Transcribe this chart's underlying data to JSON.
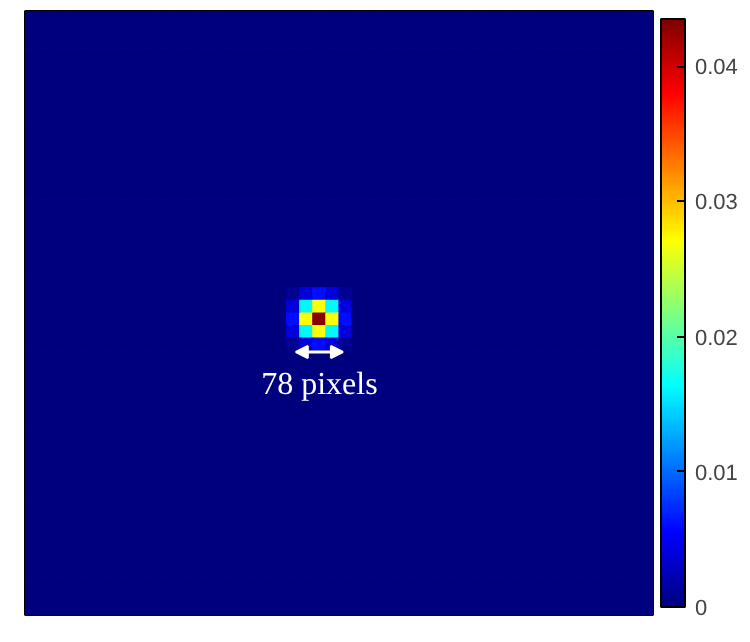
{
  "chart_data": {
    "type": "heatmap",
    "categories": [
      null,
      null,
      null,
      null,
      null,
      null,
      null,
      null,
      null,
      null,
      null,
      null,
      null,
      null,
      null,
      null,
      null,
      null,
      null,
      null,
      null,
      null,
      null,
      null,
      null,
      null,
      null,
      null,
      null,
      null,
      null,
      null,
      null,
      null,
      null,
      null,
      null,
      null,
      null,
      null,
      null,
      null,
      null,
      null,
      null,
      null,
      null,
      null
    ],
    "y_categories": [
      null,
      null,
      null,
      null,
      null,
      null,
      null,
      null,
      null,
      null,
      null,
      null,
      null,
      null,
      null,
      null,
      null,
      null,
      null,
      null,
      null,
      null,
      null,
      null,
      null,
      null,
      null,
      null,
      null,
      null,
      null,
      null,
      null,
      null,
      null,
      null,
      null,
      null,
      null,
      null,
      null,
      null,
      null,
      null,
      null,
      null,
      null,
      null
    ],
    "cells": [
      [
        0,
        0,
        0,
        0,
        0,
        0,
        0,
        0,
        0,
        0,
        0,
        0,
        0,
        0,
        0,
        0,
        0,
        0,
        0,
        0,
        0,
        0,
        0,
        0,
        0,
        0,
        0,
        0,
        0,
        0,
        0,
        0,
        0,
        0,
        0,
        0,
        0,
        0,
        0,
        0,
        0,
        0,
        0,
        0,
        0,
        0,
        0,
        0
      ],
      [
        0,
        0,
        0,
        0,
        0,
        0,
        0,
        0,
        0,
        0,
        0,
        0,
        0,
        0,
        0,
        0,
        0,
        0,
        0,
        0,
        0,
        0,
        0,
        0,
        0,
        0,
        0,
        0,
        0,
        0,
        0,
        0,
        0,
        0,
        0,
        0,
        0,
        0,
        0,
        0,
        0,
        0,
        0,
        0,
        0,
        0,
        0,
        0
      ],
      [
        0,
        0,
        0,
        0,
        0,
        0,
        0,
        0,
        0,
        0,
        0,
        0,
        0,
        0,
        0,
        0,
        0,
        0,
        0,
        0,
        0,
        0,
        0,
        0,
        0,
        0,
        0,
        0,
        0,
        0,
        0,
        0,
        0,
        0,
        0,
        0,
        0,
        0,
        0,
        0,
        0,
        0,
        0,
        0,
        0,
        0,
        0,
        0
      ],
      [
        0,
        0,
        0,
        0,
        0,
        0,
        0,
        0,
        0,
        0,
        0,
        0,
        0,
        0,
        0,
        0,
        0,
        0,
        0,
        0,
        0,
        0,
        0,
        0,
        0,
        0,
        0,
        0,
        0,
        0,
        0,
        0,
        0,
        0,
        0,
        0,
        0,
        0,
        0,
        0,
        0,
        0,
        0,
        0,
        0,
        0,
        0,
        0
      ],
      [
        0,
        0,
        0,
        0,
        0,
        0,
        0,
        0,
        0,
        0,
        0,
        0,
        0,
        0,
        0,
        0,
        0,
        0,
        0,
        0,
        0,
        0,
        0,
        0,
        0,
        0,
        0,
        0,
        0,
        0,
        0,
        0,
        0,
        0,
        0,
        0,
        0,
        0,
        0,
        0,
        0,
        0,
        0,
        0,
        0,
        0,
        0,
        0
      ],
      [
        0,
        0,
        0,
        0,
        0,
        0,
        0,
        0,
        0,
        0,
        0,
        0,
        0,
        0,
        0,
        0,
        0,
        0,
        0,
        0,
        0,
        0,
        0,
        0,
        0,
        0,
        0,
        0,
        0,
        0,
        0,
        0,
        0,
        0,
        0,
        0,
        0,
        0,
        0,
        0,
        0,
        0,
        0,
        0,
        0,
        0,
        0,
        0
      ],
      [
        0,
        0,
        0,
        0,
        0,
        0,
        0,
        0,
        0,
        0,
        0,
        0,
        0,
        0,
        0,
        0,
        0,
        0,
        0,
        0,
        0,
        0,
        0,
        0,
        0,
        0,
        0,
        0,
        0,
        0,
        0,
        0,
        0,
        0,
        0,
        0,
        0,
        0,
        0,
        0,
        0,
        0,
        0,
        0,
        0,
        0,
        0,
        0
      ],
      [
        0,
        0,
        0,
        0,
        0,
        0,
        0,
        0,
        0,
        0,
        0,
        0,
        0,
        0,
        0,
        0,
        0,
        0,
        0,
        0,
        0,
        0,
        0,
        0,
        0,
        0,
        0,
        0,
        0,
        0,
        0,
        0,
        0,
        0,
        0,
        0,
        0,
        0,
        0,
        0,
        0,
        0,
        0,
        0,
        0,
        0,
        0,
        0
      ],
      [
        0,
        0,
        0,
        0,
        0,
        0,
        0,
        0,
        0,
        0,
        0,
        0,
        0,
        0,
        0,
        0,
        0,
        0,
        0,
        0,
        0,
        0,
        0,
        0,
        0,
        0,
        0,
        0,
        0,
        0,
        0,
        0,
        0,
        0,
        0,
        0,
        0,
        0,
        0,
        0,
        0,
        0,
        0,
        0,
        0,
        0,
        0,
        0
      ],
      [
        0,
        0,
        0,
        0,
        0,
        0,
        0,
        0,
        0,
        0,
        0,
        0,
        0,
        0,
        0,
        0,
        0,
        0,
        0,
        0,
        0,
        0,
        0,
        0,
        0,
        0,
        0,
        0,
        0,
        0,
        0,
        0,
        0,
        0,
        0,
        0,
        0,
        0,
        0,
        0,
        0,
        0,
        0,
        0,
        0,
        0,
        0,
        0
      ],
      [
        0,
        0,
        0,
        0,
        0,
        0,
        0,
        0,
        0,
        0,
        0,
        0,
        0,
        0,
        0,
        0,
        0,
        0,
        0,
        0,
        0,
        0,
        0,
        0,
        0,
        0,
        0,
        0,
        0,
        0,
        0,
        0,
        0,
        0,
        0,
        0,
        0,
        0,
        0,
        0,
        0,
        0,
        0,
        0,
        0,
        0,
        0,
        0
      ],
      [
        0,
        0,
        0,
        0,
        0,
        0,
        0,
        0,
        0,
        0,
        0,
        0,
        0,
        0,
        0,
        0,
        0,
        0,
        0,
        0,
        0,
        0,
        0,
        0,
        0,
        0,
        0,
        0,
        0,
        0,
        0,
        0,
        0,
        0,
        0,
        0,
        0,
        0,
        0,
        0,
        0,
        0,
        0,
        0,
        0,
        0,
        0,
        0
      ],
      [
        0,
        0,
        0,
        0,
        0,
        0,
        0,
        0,
        0,
        0,
        0,
        0,
        0,
        0,
        0,
        0,
        0,
        0,
        0,
        0,
        0,
        0,
        0,
        0,
        0,
        0,
        0,
        0,
        0,
        0,
        0,
        0,
        0,
        0,
        0,
        0,
        0,
        0,
        0,
        0,
        0,
        0,
        0,
        0,
        0,
        0,
        0,
        0
      ],
      [
        0,
        0,
        0,
        0,
        0,
        0,
        0,
        0,
        0,
        0,
        0,
        0,
        0,
        0,
        0,
        0,
        0,
        0,
        0,
        0,
        0,
        0,
        0,
        0,
        0,
        0,
        0,
        0,
        0,
        0,
        0,
        0,
        0,
        0,
        0,
        0,
        0,
        0,
        0,
        0,
        0,
        0,
        0,
        0,
        0,
        0,
        0,
        0
      ],
      [
        0,
        0,
        0,
        0,
        0,
        0,
        0,
        0,
        0,
        0,
        0,
        0,
        0,
        0,
        0,
        0,
        0,
        0,
        0,
        0,
        0,
        0,
        0,
        0,
        0,
        0,
        0,
        0,
        0,
        0,
        0,
        0,
        0,
        0,
        0,
        0,
        0,
        0,
        0,
        0,
        0,
        0,
        0,
        0,
        0,
        0,
        0,
        0
      ],
      [
        0,
        0,
        0,
        0,
        0,
        0,
        0,
        0,
        0,
        0,
        0,
        0,
        0,
        0,
        0,
        0,
        0,
        0,
        0,
        0,
        0,
        0,
        0,
        0,
        0,
        0,
        0,
        0,
        0,
        0,
        0,
        0,
        0,
        0,
        0,
        0,
        0,
        0,
        0,
        0,
        0,
        0,
        0,
        0,
        0,
        0,
        0,
        0
      ],
      [
        0,
        0,
        0,
        0,
        0,
        0,
        0,
        0,
        0,
        0,
        0,
        0,
        0,
        0,
        0,
        0,
        0,
        0,
        0,
        0,
        0,
        0,
        0,
        0,
        0,
        0,
        0,
        0,
        0,
        0,
        0,
        0,
        0,
        0,
        0,
        0,
        0,
        0,
        0,
        0,
        0,
        0,
        0,
        0,
        0,
        0,
        0,
        0
      ],
      [
        0,
        0,
        0,
        0,
        0,
        0,
        0,
        0,
        0,
        0,
        0,
        0,
        0,
        0,
        0,
        0,
        0,
        0,
        0,
        0,
        0,
        0,
        0,
        0,
        0,
        0,
        0,
        0,
        0,
        0,
        0,
        0,
        0,
        0,
        0,
        0,
        0,
        0,
        0,
        0,
        0,
        0,
        0,
        0,
        0,
        0,
        0,
        0
      ],
      [
        0,
        0,
        0,
        0,
        0,
        0,
        0,
        0,
        0,
        0,
        0,
        0,
        0,
        0,
        0,
        0,
        0,
        0,
        0,
        0,
        0,
        0,
        0,
        0,
        0,
        0,
        0,
        0,
        0,
        0,
        0,
        0,
        0,
        0,
        0,
        0,
        0,
        0,
        0,
        0,
        0,
        0,
        0,
        0,
        0,
        0,
        0,
        0
      ],
      [
        0,
        0,
        0,
        0,
        0,
        0,
        0,
        0,
        0,
        0,
        0,
        0,
        0,
        0,
        0,
        0,
        0,
        0,
        0,
        0,
        0,
        0,
        0,
        0,
        0,
        0,
        0,
        0,
        0,
        0,
        0,
        0,
        0,
        0,
        0,
        0,
        0,
        0,
        0,
        0,
        0,
        0,
        0,
        0,
        0,
        0,
        0,
        0
      ],
      [
        0,
        0,
        0,
        0,
        0,
        0,
        0,
        0,
        0,
        0,
        0,
        0,
        0,
        0,
        0,
        0,
        0,
        0,
        0,
        0,
        0,
        0,
        0,
        0,
        0,
        0,
        0,
        0,
        0,
        0,
        0,
        0,
        0,
        0,
        0,
        0,
        0,
        0,
        0,
        0,
        0,
        0,
        0,
        0,
        0,
        0,
        0,
        0
      ],
      [
        0,
        0,
        0,
        0,
        0,
        0,
        0,
        0,
        0,
        0,
        0,
        0,
        0,
        0,
        0,
        0,
        0,
        0,
        0,
        0,
        0,
        0,
        0,
        0,
        0,
        0,
        0,
        0,
        0,
        0,
        0,
        0,
        0,
        0,
        0,
        0,
        0,
        0,
        0,
        0,
        0,
        0,
        0,
        0,
        0,
        0,
        0,
        0
      ],
      [
        0,
        0,
        0,
        0,
        0,
        0,
        0,
        0,
        0,
        0,
        0,
        0,
        0,
        0,
        0,
        0,
        0,
        0,
        0,
        0,
        0.001,
        0.004,
        0.006,
        0.004,
        0.001,
        0,
        0,
        0,
        0,
        0,
        0,
        0,
        0,
        0,
        0,
        0,
        0,
        0,
        0,
        0,
        0,
        0,
        0,
        0,
        0,
        0,
        0,
        0
      ],
      [
        0,
        0,
        0,
        0,
        0,
        0,
        0,
        0,
        0,
        0,
        0,
        0,
        0,
        0,
        0,
        0,
        0,
        0,
        0,
        0,
        0.004,
        0.016,
        0.027,
        0.016,
        0.004,
        0,
        0,
        0,
        0,
        0,
        0,
        0,
        0,
        0,
        0,
        0,
        0,
        0,
        0,
        0,
        0,
        0,
        0,
        0,
        0,
        0,
        0,
        0
      ],
      [
        0,
        0,
        0,
        0,
        0,
        0,
        0,
        0,
        0,
        0,
        0,
        0,
        0,
        0,
        0,
        0,
        0,
        0,
        0,
        0,
        0.006,
        0.027,
        0.043,
        0.027,
        0.006,
        0,
        0,
        0,
        0,
        0,
        0,
        0,
        0,
        0,
        0,
        0,
        0,
        0,
        0,
        0,
        0,
        0,
        0,
        0,
        0,
        0,
        0,
        0
      ],
      [
        0,
        0,
        0,
        0,
        0,
        0,
        0,
        0,
        0,
        0,
        0,
        0,
        0,
        0,
        0,
        0,
        0,
        0,
        0,
        0,
        0.004,
        0.016,
        0.027,
        0.016,
        0.004,
        0,
        0,
        0,
        0,
        0,
        0,
        0,
        0,
        0,
        0,
        0,
        0,
        0,
        0,
        0,
        0,
        0,
        0,
        0,
        0,
        0,
        0,
        0
      ],
      [
        0,
        0,
        0,
        0,
        0,
        0,
        0,
        0,
        0,
        0,
        0,
        0,
        0,
        0,
        0,
        0,
        0,
        0,
        0,
        0,
        0.001,
        0.004,
        0.006,
        0.004,
        0.001,
        0,
        0,
        0,
        0,
        0,
        0,
        0,
        0,
        0,
        0,
        0,
        0,
        0,
        0,
        0,
        0,
        0,
        0,
        0,
        0,
        0,
        0,
        0
      ],
      [
        0,
        0,
        0,
        0,
        0,
        0,
        0,
        0,
        0,
        0,
        0,
        0,
        0,
        0,
        0,
        0,
        0,
        0,
        0,
        0,
        0,
        0,
        0,
        0,
        0,
        0,
        0,
        0,
        0,
        0,
        0,
        0,
        0,
        0,
        0,
        0,
        0,
        0,
        0,
        0,
        0,
        0,
        0,
        0,
        0,
        0,
        0,
        0
      ],
      [
        0,
        0,
        0,
        0,
        0,
        0,
        0,
        0,
        0,
        0,
        0,
        0,
        0,
        0,
        0,
        0,
        0,
        0,
        0,
        0,
        0,
        0,
        0,
        0,
        0,
        0,
        0,
        0,
        0,
        0,
        0,
        0,
        0,
        0,
        0,
        0,
        0,
        0,
        0,
        0,
        0,
        0,
        0,
        0,
        0,
        0,
        0,
        0
      ],
      [
        0,
        0,
        0,
        0,
        0,
        0,
        0,
        0,
        0,
        0,
        0,
        0,
        0,
        0,
        0,
        0,
        0,
        0,
        0,
        0,
        0,
        0,
        0,
        0,
        0,
        0,
        0,
        0,
        0,
        0,
        0,
        0,
        0,
        0,
        0,
        0,
        0,
        0,
        0,
        0,
        0,
        0,
        0,
        0,
        0,
        0,
        0,
        0
      ],
      [
        0,
        0,
        0,
        0,
        0,
        0,
        0,
        0,
        0,
        0,
        0,
        0,
        0,
        0,
        0,
        0,
        0,
        0,
        0,
        0,
        0,
        0,
        0,
        0,
        0,
        0,
        0,
        0,
        0,
        0,
        0,
        0,
        0,
        0,
        0,
        0,
        0,
        0,
        0,
        0,
        0,
        0,
        0,
        0,
        0,
        0,
        0,
        0
      ],
      [
        0,
        0,
        0,
        0,
        0,
        0,
        0,
        0,
        0,
        0,
        0,
        0,
        0,
        0,
        0,
        0,
        0,
        0,
        0,
        0,
        0,
        0,
        0,
        0,
        0,
        0,
        0,
        0,
        0,
        0,
        0,
        0,
        0,
        0,
        0,
        0,
        0,
        0,
        0,
        0,
        0,
        0,
        0,
        0,
        0,
        0,
        0,
        0
      ],
      [
        0,
        0,
        0,
        0,
        0,
        0,
        0,
        0,
        0,
        0,
        0,
        0,
        0,
        0,
        0,
        0,
        0,
        0,
        0,
        0,
        0,
        0,
        0,
        0,
        0,
        0,
        0,
        0,
        0,
        0,
        0,
        0,
        0,
        0,
        0,
        0,
        0,
        0,
        0,
        0,
        0,
        0,
        0,
        0,
        0,
        0,
        0,
        0
      ],
      [
        0,
        0,
        0,
        0,
        0,
        0,
        0,
        0,
        0,
        0,
        0,
        0,
        0,
        0,
        0,
        0,
        0,
        0,
        0,
        0,
        0,
        0,
        0,
        0,
        0,
        0,
        0,
        0,
        0,
        0,
        0,
        0,
        0,
        0,
        0,
        0,
        0,
        0,
        0,
        0,
        0,
        0,
        0,
        0,
        0,
        0,
        0,
        0
      ],
      [
        0,
        0,
        0,
        0,
        0,
        0,
        0,
        0,
        0,
        0,
        0,
        0,
        0,
        0,
        0,
        0,
        0,
        0,
        0,
        0,
        0,
        0,
        0,
        0,
        0,
        0,
        0,
        0,
        0,
        0,
        0,
        0,
        0,
        0,
        0,
        0,
        0,
        0,
        0,
        0,
        0,
        0,
        0,
        0,
        0,
        0,
        0,
        0
      ],
      [
        0,
        0,
        0,
        0,
        0,
        0,
        0,
        0,
        0,
        0,
        0,
        0,
        0,
        0,
        0,
        0,
        0,
        0,
        0,
        0,
        0,
        0,
        0,
        0,
        0,
        0,
        0,
        0,
        0,
        0,
        0,
        0,
        0,
        0,
        0,
        0,
        0,
        0,
        0,
        0,
        0,
        0,
        0,
        0,
        0,
        0,
        0,
        0
      ],
      [
        0,
        0,
        0,
        0,
        0,
        0,
        0,
        0,
        0,
        0,
        0,
        0,
        0,
        0,
        0,
        0,
        0,
        0,
        0,
        0,
        0,
        0,
        0,
        0,
        0,
        0,
        0,
        0,
        0,
        0,
        0,
        0,
        0,
        0,
        0,
        0,
        0,
        0,
        0,
        0,
        0,
        0,
        0,
        0,
        0,
        0,
        0,
        0
      ],
      [
        0,
        0,
        0,
        0,
        0,
        0,
        0,
        0,
        0,
        0,
        0,
        0,
        0,
        0,
        0,
        0,
        0,
        0,
        0,
        0,
        0,
        0,
        0,
        0,
        0,
        0,
        0,
        0,
        0,
        0,
        0,
        0,
        0,
        0,
        0,
        0,
        0,
        0,
        0,
        0,
        0,
        0,
        0,
        0,
        0,
        0,
        0,
        0
      ],
      [
        0,
        0,
        0,
        0,
        0,
        0,
        0,
        0,
        0,
        0,
        0,
        0,
        0,
        0,
        0,
        0,
        0,
        0,
        0,
        0,
        0,
        0,
        0,
        0,
        0,
        0,
        0,
        0,
        0,
        0,
        0,
        0,
        0,
        0,
        0,
        0,
        0,
        0,
        0,
        0,
        0,
        0,
        0,
        0,
        0,
        0,
        0,
        0
      ],
      [
        0,
        0,
        0,
        0,
        0,
        0,
        0,
        0,
        0,
        0,
        0,
        0,
        0,
        0,
        0,
        0,
        0,
        0,
        0,
        0,
        0,
        0,
        0,
        0,
        0,
        0,
        0,
        0,
        0,
        0,
        0,
        0,
        0,
        0,
        0,
        0,
        0,
        0,
        0,
        0,
        0,
        0,
        0,
        0,
        0,
        0,
        0,
        0
      ],
      [
        0,
        0,
        0,
        0,
        0,
        0,
        0,
        0,
        0,
        0,
        0,
        0,
        0,
        0,
        0,
        0,
        0,
        0,
        0,
        0,
        0,
        0,
        0,
        0,
        0,
        0,
        0,
        0,
        0,
        0,
        0,
        0,
        0,
        0,
        0,
        0,
        0,
        0,
        0,
        0,
        0,
        0,
        0,
        0,
        0,
        0,
        0,
        0
      ],
      [
        0,
        0,
        0,
        0,
        0,
        0,
        0,
        0,
        0,
        0,
        0,
        0,
        0,
        0,
        0,
        0,
        0,
        0,
        0,
        0,
        0,
        0,
        0,
        0,
        0,
        0,
        0,
        0,
        0,
        0,
        0,
        0,
        0,
        0,
        0,
        0,
        0,
        0,
        0,
        0,
        0,
        0,
        0,
        0,
        0,
        0,
        0,
        0
      ],
      [
        0,
        0,
        0,
        0,
        0,
        0,
        0,
        0,
        0,
        0,
        0,
        0,
        0,
        0,
        0,
        0,
        0,
        0,
        0,
        0,
        0,
        0,
        0,
        0,
        0,
        0,
        0,
        0,
        0,
        0,
        0,
        0,
        0,
        0,
        0,
        0,
        0,
        0,
        0,
        0,
        0,
        0,
        0,
        0,
        0,
        0,
        0,
        0
      ],
      [
        0,
        0,
        0,
        0,
        0,
        0,
        0,
        0,
        0,
        0,
        0,
        0,
        0,
        0,
        0,
        0,
        0,
        0,
        0,
        0,
        0,
        0,
        0,
        0,
        0,
        0,
        0,
        0,
        0,
        0,
        0,
        0,
        0,
        0,
        0,
        0,
        0,
        0,
        0,
        0,
        0,
        0,
        0,
        0,
        0,
        0,
        0,
        0
      ],
      [
        0,
        0,
        0,
        0,
        0,
        0,
        0,
        0,
        0,
        0,
        0,
        0,
        0,
        0,
        0,
        0,
        0,
        0,
        0,
        0,
        0,
        0,
        0,
        0,
        0,
        0,
        0,
        0,
        0,
        0,
        0,
        0,
        0,
        0,
        0,
        0,
        0,
        0,
        0,
        0,
        0,
        0,
        0,
        0,
        0,
        0,
        0,
        0
      ],
      [
        0,
        0,
        0,
        0,
        0,
        0,
        0,
        0,
        0,
        0,
        0,
        0,
        0,
        0,
        0,
        0,
        0,
        0,
        0,
        0,
        0,
        0,
        0,
        0,
        0,
        0,
        0,
        0,
        0,
        0,
        0,
        0,
        0,
        0,
        0,
        0,
        0,
        0,
        0,
        0,
        0,
        0,
        0,
        0,
        0,
        0,
        0,
        0
      ],
      [
        0,
        0,
        0,
        0,
        0,
        0,
        0,
        0,
        0,
        0,
        0,
        0,
        0,
        0,
        0,
        0,
        0,
        0,
        0,
        0,
        0,
        0,
        0,
        0,
        0,
        0,
        0,
        0,
        0,
        0,
        0,
        0,
        0,
        0,
        0,
        0,
        0,
        0,
        0,
        0,
        0,
        0,
        0,
        0,
        0,
        0,
        0,
        0
      ],
      [
        0,
        0,
        0,
        0,
        0,
        0,
        0,
        0,
        0,
        0,
        0,
        0,
        0,
        0,
        0,
        0,
        0,
        0,
        0,
        0,
        0,
        0,
        0,
        0,
        0,
        0,
        0,
        0,
        0,
        0,
        0,
        0,
        0,
        0,
        0,
        0,
        0,
        0,
        0,
        0,
        0,
        0,
        0,
        0,
        0,
        0,
        0,
        0
      ]
    ],
    "clim": [
      0,
      0.0435
    ],
    "cticks": [
      0,
      0.01,
      0.02,
      0.03,
      0.04
    ],
    "annotations": [
      "78 pixels"
    ],
    "tick_labels": false
  }
}
